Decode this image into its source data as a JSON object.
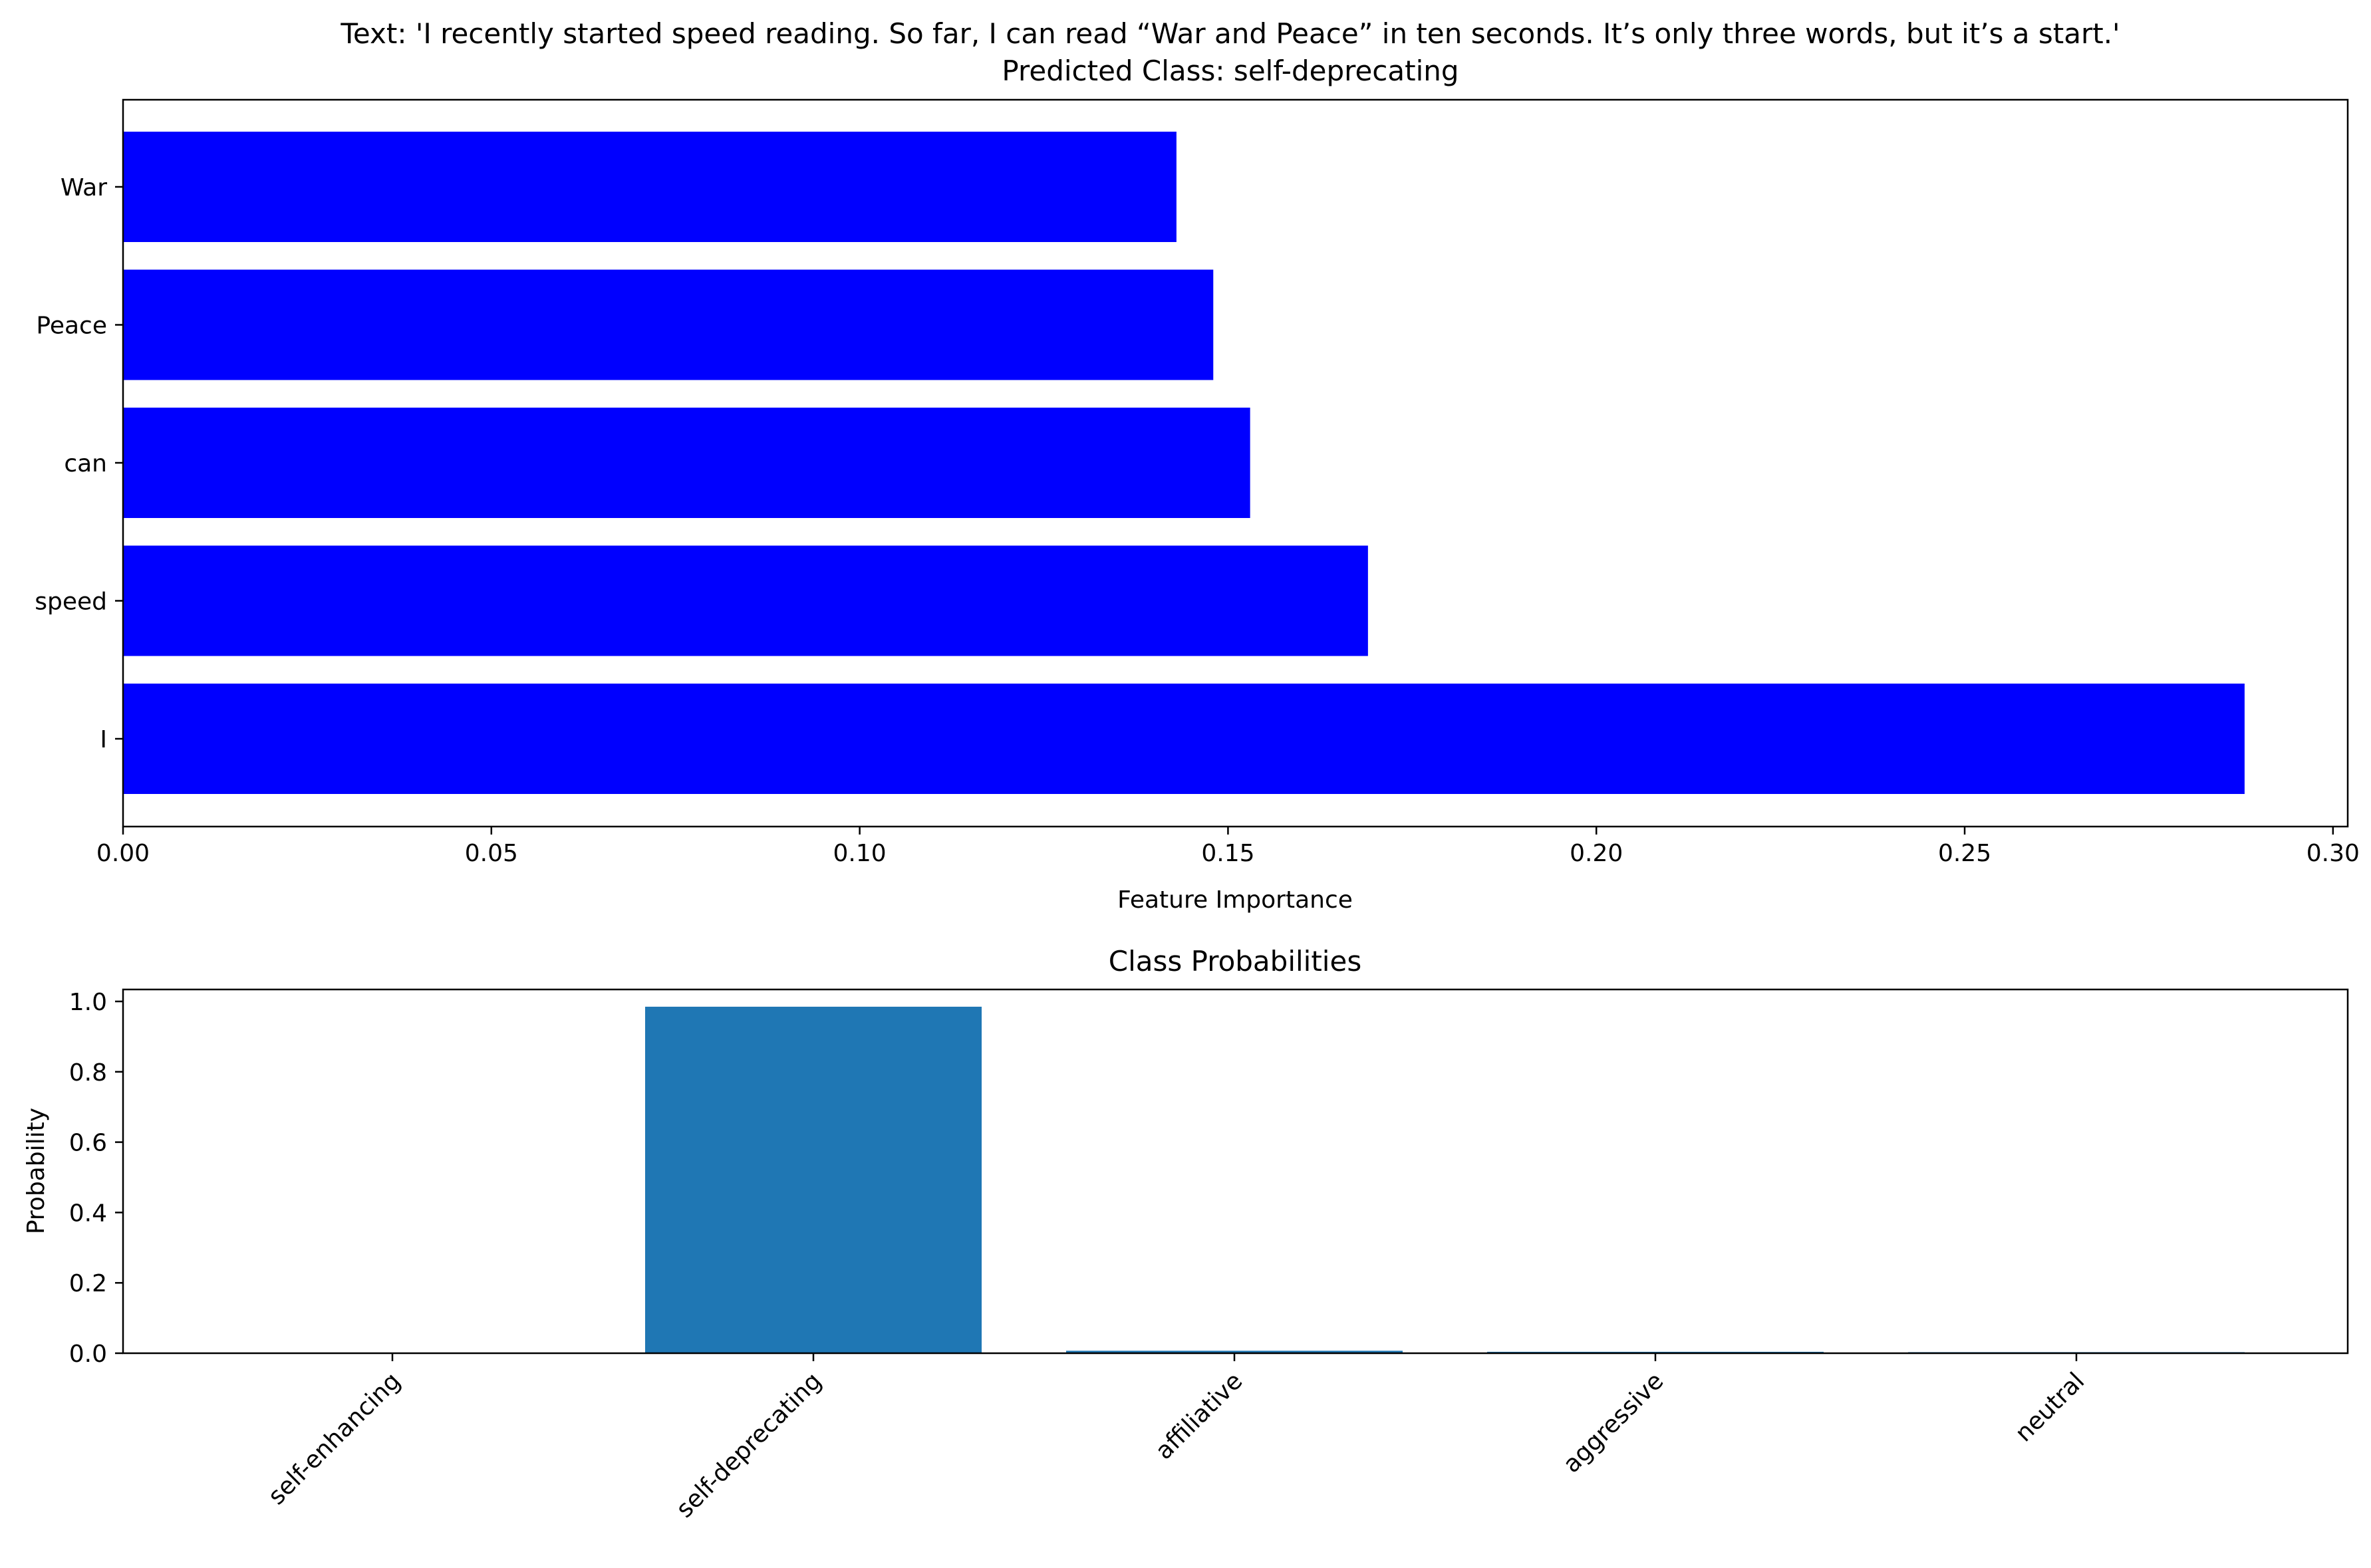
{
  "figure": {
    "title_line1": "Text: 'I recently started speed reading. So far, I can read “War and Peace” in ten seconds. It’s only three words, but it’s a start.'",
    "title_line2": "Predicted Class: self-deprecating"
  },
  "chart_data": [
    {
      "type": "bar",
      "orientation": "horizontal",
      "title": "",
      "xlabel": "Feature Importance",
      "ylabel": "",
      "categories": [
        "I",
        "speed",
        "can",
        "Peace",
        "War"
      ],
      "values": [
        0.288,
        0.169,
        0.153,
        0.148,
        0.143
      ],
      "xlim": [
        0.0,
        0.302
      ],
      "xticks": [
        "0.00",
        "0.05",
        "0.10",
        "0.15",
        "0.20",
        "0.25",
        "0.30"
      ],
      "bar_color": "#0000ff",
      "grid": false
    },
    {
      "type": "bar",
      "orientation": "vertical",
      "title": "Class Probabilities",
      "xlabel": "",
      "ylabel": "Probability",
      "categories": [
        "self-enhancing",
        "self-deprecating",
        "affiliative",
        "aggressive",
        "neutral"
      ],
      "values": [
        0.001,
        0.985,
        0.007,
        0.004,
        0.003
      ],
      "ylim": [
        0.0,
        1.034
      ],
      "yticks": [
        "0.0",
        "0.2",
        "0.4",
        "0.6",
        "0.8",
        "1.0"
      ],
      "bar_color": "#1f77b4",
      "grid": false
    }
  ]
}
